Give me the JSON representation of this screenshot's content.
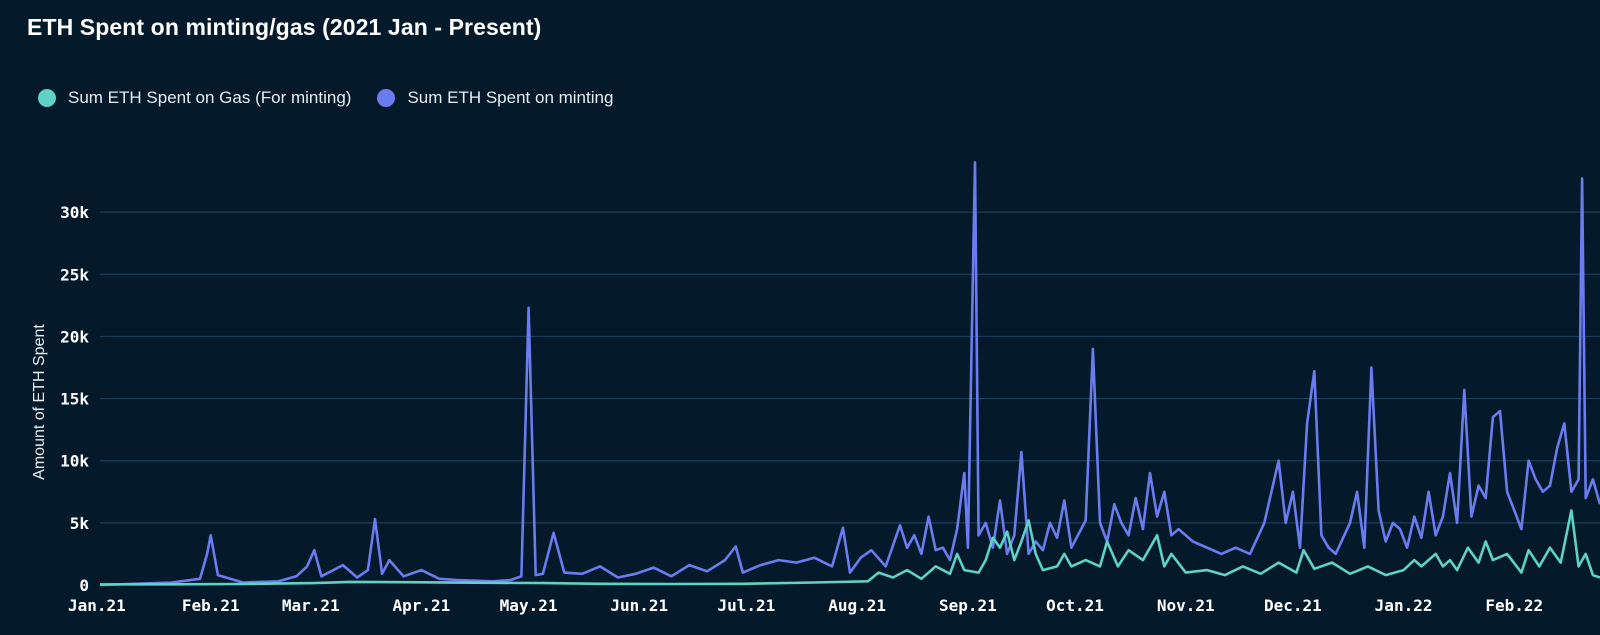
{
  "chart_data": {
    "type": "line",
    "title": "ETH Spent on minting/gas (2021 Jan - Present)",
    "ylabel": "Amount of ETH Spent",
    "xlabel": "",
    "ylim": [
      0,
      35000
    ],
    "grid": true,
    "legend_placement": "top-left",
    "y_ticks": [
      {
        "value": 0,
        "label": "0"
      },
      {
        "value": 5000,
        "label": "5k"
      },
      {
        "value": 10000,
        "label": "10k"
      },
      {
        "value": 15000,
        "label": "15k"
      },
      {
        "value": 20000,
        "label": "20k"
      },
      {
        "value": 25000,
        "label": "25k"
      },
      {
        "value": 30000,
        "label": "30k"
      }
    ],
    "x_ticks": [
      {
        "day": 0,
        "label": "Jan.21"
      },
      {
        "day": 31,
        "label": "Feb.21"
      },
      {
        "day": 59,
        "label": "Mar.21"
      },
      {
        "day": 90,
        "label": "Apr.21"
      },
      {
        "day": 120,
        "label": "May.21"
      },
      {
        "day": 151,
        "label": "Jun.21"
      },
      {
        "day": 181,
        "label": "Jul.21"
      },
      {
        "day": 212,
        "label": "Aug.21"
      },
      {
        "day": 243,
        "label": "Sep.21"
      },
      {
        "day": 273,
        "label": "Oct.21"
      },
      {
        "day": 304,
        "label": "Nov.21"
      },
      {
        "day": 334,
        "label": "Dec.21"
      },
      {
        "day": 365,
        "label": "Jan.22"
      },
      {
        "day": 396,
        "label": "Feb.22"
      }
    ],
    "x_range_days": [
      0,
      420
    ],
    "series": [
      {
        "name": "Sum ETH Spent on Gas (For minting)",
        "color": "#5fd1c6",
        "points": [
          [
            0,
            50
          ],
          [
            20,
            60
          ],
          [
            40,
            80
          ],
          [
            60,
            150
          ],
          [
            70,
            250
          ],
          [
            90,
            220
          ],
          [
            110,
            180
          ],
          [
            125,
            150
          ],
          [
            140,
            100
          ],
          [
            160,
            80
          ],
          [
            180,
            100
          ],
          [
            200,
            200
          ],
          [
            215,
            300
          ],
          [
            218,
            1000
          ],
          [
            222,
            600
          ],
          [
            226,
            1200
          ],
          [
            230,
            500
          ],
          [
            234,
            1500
          ],
          [
            238,
            900
          ],
          [
            240,
            2500
          ],
          [
            242,
            1200
          ],
          [
            246,
            1000
          ],
          [
            248,
            2000
          ],
          [
            250,
            3800
          ],
          [
            252,
            3000
          ],
          [
            254,
            4300
          ],
          [
            256,
            2000
          ],
          [
            258,
            3500
          ],
          [
            260,
            5200
          ],
          [
            262,
            2500
          ],
          [
            264,
            1200
          ],
          [
            268,
            1500
          ],
          [
            270,
            2500
          ],
          [
            272,
            1500
          ],
          [
            276,
            2000
          ],
          [
            280,
            1500
          ],
          [
            282,
            3500
          ],
          [
            285,
            1500
          ],
          [
            288,
            2800
          ],
          [
            292,
            2000
          ],
          [
            296,
            4000
          ],
          [
            298,
            1500
          ],
          [
            300,
            2500
          ],
          [
            304,
            1000
          ],
          [
            310,
            1200
          ],
          [
            315,
            800
          ],
          [
            320,
            1500
          ],
          [
            325,
            900
          ],
          [
            330,
            1800
          ],
          [
            335,
            1000
          ],
          [
            337,
            2800
          ],
          [
            340,
            1300
          ],
          [
            345,
            1800
          ],
          [
            350,
            900
          ],
          [
            355,
            1500
          ],
          [
            360,
            800
          ],
          [
            365,
            1200
          ],
          [
            368,
            2000
          ],
          [
            370,
            1500
          ],
          [
            374,
            2500
          ],
          [
            376,
            1500
          ],
          [
            378,
            2000
          ],
          [
            380,
            1200
          ],
          [
            383,
            3000
          ],
          [
            386,
            1800
          ],
          [
            388,
            3500
          ],
          [
            390,
            2000
          ],
          [
            394,
            2500
          ],
          [
            398,
            1000
          ],
          [
            400,
            2800
          ],
          [
            403,
            1500
          ],
          [
            406,
            3000
          ],
          [
            409,
            1800
          ],
          [
            412,
            6000
          ],
          [
            414,
            1500
          ],
          [
            416,
            2500
          ],
          [
            418,
            800
          ],
          [
            420,
            600
          ]
        ]
      },
      {
        "name": "Sum ETH Spent on minting",
        "color": "#6b7cf0",
        "points": [
          [
            0,
            0
          ],
          [
            10,
            100
          ],
          [
            20,
            200
          ],
          [
            28,
            500
          ],
          [
            30,
            2500
          ],
          [
            31,
            4000
          ],
          [
            33,
            800
          ],
          [
            40,
            200
          ],
          [
            50,
            300
          ],
          [
            55,
            700
          ],
          [
            58,
            1500
          ],
          [
            60,
            2800
          ],
          [
            62,
            700
          ],
          [
            68,
            1600
          ],
          [
            72,
            600
          ],
          [
            75,
            1200
          ],
          [
            77,
            5300
          ],
          [
            79,
            900
          ],
          [
            81,
            2000
          ],
          [
            85,
            700
          ],
          [
            90,
            1200
          ],
          [
            95,
            500
          ],
          [
            100,
            400
          ],
          [
            110,
            300
          ],
          [
            115,
            400
          ],
          [
            118,
            700
          ],
          [
            120,
            22300
          ],
          [
            122,
            800
          ],
          [
            124,
            900
          ],
          [
            127,
            4200
          ],
          [
            130,
            1000
          ],
          [
            135,
            900
          ],
          [
            140,
            1500
          ],
          [
            145,
            600
          ],
          [
            150,
            900
          ],
          [
            155,
            1400
          ],
          [
            160,
            700
          ],
          [
            165,
            1600
          ],
          [
            170,
            1100
          ],
          [
            175,
            2000
          ],
          [
            178,
            3100
          ],
          [
            180,
            1000
          ],
          [
            185,
            1600
          ],
          [
            190,
            2000
          ],
          [
            195,
            1800
          ],
          [
            200,
            2200
          ],
          [
            205,
            1500
          ],
          [
            208,
            4600
          ],
          [
            210,
            1000
          ],
          [
            213,
            2200
          ],
          [
            216,
            2800
          ],
          [
            220,
            1500
          ],
          [
            224,
            4800
          ],
          [
            226,
            3000
          ],
          [
            228,
            4000
          ],
          [
            230,
            2500
          ],
          [
            232,
            5500
          ],
          [
            234,
            2800
          ],
          [
            236,
            3000
          ],
          [
            238,
            2000
          ],
          [
            240,
            4500
          ],
          [
            242,
            9000
          ],
          [
            243,
            3000
          ],
          [
            245,
            34000
          ],
          [
            246,
            4000
          ],
          [
            248,
            5000
          ],
          [
            250,
            3000
          ],
          [
            252,
            6800
          ],
          [
            254,
            2500
          ],
          [
            256,
            4000
          ],
          [
            258,
            10700
          ],
          [
            260,
            2500
          ],
          [
            262,
            3500
          ],
          [
            264,
            2800
          ],
          [
            266,
            5000
          ],
          [
            268,
            3800
          ],
          [
            270,
            6800
          ],
          [
            272,
            3000
          ],
          [
            276,
            5200
          ],
          [
            278,
            19000
          ],
          [
            280,
            5000
          ],
          [
            282,
            3500
          ],
          [
            284,
            6500
          ],
          [
            286,
            5000
          ],
          [
            288,
            4000
          ],
          [
            290,
            7000
          ],
          [
            292,
            4500
          ],
          [
            294,
            9000
          ],
          [
            296,
            5500
          ],
          [
            298,
            7500
          ],
          [
            300,
            4000
          ],
          [
            302,
            4500
          ],
          [
            306,
            3500
          ],
          [
            310,
            3000
          ],
          [
            314,
            2500
          ],
          [
            318,
            3000
          ],
          [
            322,
            2500
          ],
          [
            326,
            5000
          ],
          [
            330,
            10000
          ],
          [
            332,
            5000
          ],
          [
            334,
            7500
          ],
          [
            336,
            3000
          ],
          [
            338,
            13000
          ],
          [
            340,
            17200
          ],
          [
            342,
            4000
          ],
          [
            344,
            3000
          ],
          [
            346,
            2500
          ],
          [
            350,
            5000
          ],
          [
            352,
            7500
          ],
          [
            354,
            3000
          ],
          [
            356,
            17500
          ],
          [
            358,
            6000
          ],
          [
            360,
            3500
          ],
          [
            362,
            5000
          ],
          [
            364,
            4500
          ],
          [
            366,
            3000
          ],
          [
            368,
            5500
          ],
          [
            370,
            3800
          ],
          [
            372,
            7500
          ],
          [
            374,
            4000
          ],
          [
            376,
            5500
          ],
          [
            378,
            9000
          ],
          [
            380,
            5000
          ],
          [
            382,
            15700
          ],
          [
            384,
            5500
          ],
          [
            386,
            8000
          ],
          [
            388,
            7000
          ],
          [
            390,
            13500
          ],
          [
            392,
            14000
          ],
          [
            394,
            7500
          ],
          [
            396,
            6000
          ],
          [
            398,
            4500
          ],
          [
            400,
            10000
          ],
          [
            402,
            8500
          ],
          [
            404,
            7500
          ],
          [
            406,
            8000
          ],
          [
            408,
            11000
          ],
          [
            410,
            13000
          ],
          [
            412,
            7500
          ],
          [
            414,
            8500
          ],
          [
            415,
            32700
          ],
          [
            416,
            7000
          ],
          [
            418,
            8500
          ],
          [
            420,
            6500
          ]
        ]
      }
    ]
  }
}
